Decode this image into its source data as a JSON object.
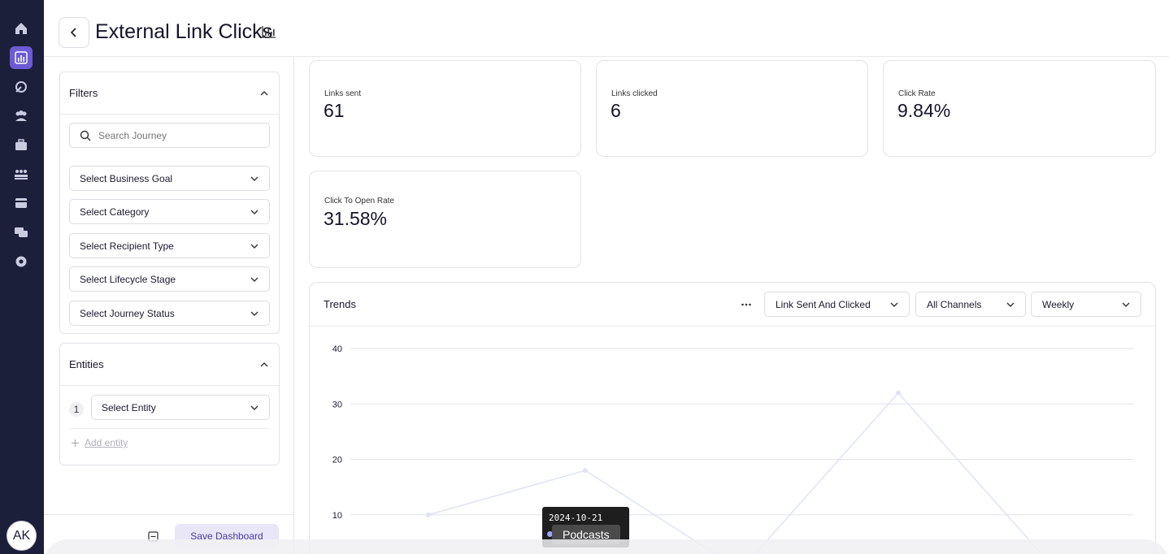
{
  "app": {
    "nav_icons": [
      "home-icon",
      "analytics-icon",
      "journey-icon",
      "audience-icon",
      "briefcase-icon",
      "team-icon",
      "card-icon",
      "messages-icon",
      "settings-icon"
    ],
    "active_nav": "analytics-icon",
    "user_initials": "AK",
    "accent": "#6b5bd6",
    "rail_color": "#1c1f3a"
  },
  "header": {
    "title": "External Link Clicks"
  },
  "filters": {
    "title": "Filters",
    "search_placeholder": "Search Journey",
    "selects": [
      "Select Business Goal",
      "Select Category",
      "Select Recipient Type",
      "Select Lifecycle Stage",
      "Select Journey Status"
    ]
  },
  "entities": {
    "title": "Entities",
    "number": "1",
    "select_label": "Select Entity",
    "add_label": "Add entity"
  },
  "footer": {
    "save_label": "Save Dashboard"
  },
  "kpis": [
    {
      "label": "Links sent",
      "value": "61"
    },
    {
      "label": "Links clicked",
      "value": "6"
    },
    {
      "label": "Click Rate",
      "value": "9.84%"
    },
    {
      "label": "Click To Open Rate",
      "value": "31.58%"
    }
  ],
  "trends": {
    "title": "Trends",
    "metric_select": "Link Sent And Clicked",
    "channel_select": "All Channels",
    "period_select": "Weekly",
    "tooltip": {
      "date": "2024-10-21",
      "series": "Podcasts"
    }
  },
  "chart_data": {
    "type": "line",
    "yticks": [
      10,
      20,
      30,
      40
    ],
    "ylim": [
      0,
      40
    ],
    "series": [
      {
        "values": [
          10,
          18,
          0,
          32,
          0
        ]
      }
    ],
    "line_color": "#dfe3f5"
  }
}
